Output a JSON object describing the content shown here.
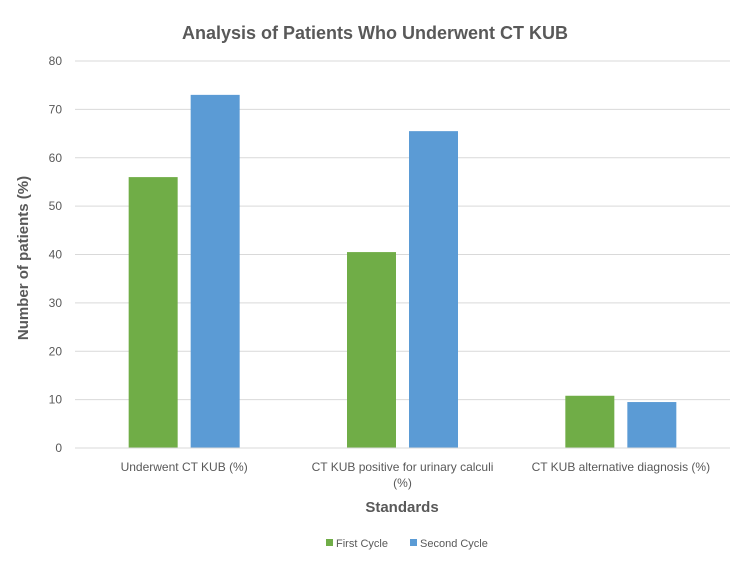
{
  "chart_data": {
    "type": "bar",
    "title": "Analysis of Patients Who Underwent CT KUB",
    "xlabel": "Standards",
    "ylabel": "Number of patients (%)",
    "ylim": [
      0,
      80
    ],
    "yticks": [
      0,
      10,
      20,
      30,
      40,
      50,
      60,
      70,
      80
    ],
    "grid": true,
    "legend_position": "bottom",
    "categories": [
      [
        "Underwent CT KUB (%)"
      ],
      [
        "CT KUB positive for urinary calculi",
        "(%)"
      ],
      [
        "CT KUB alternative diagnosis (%)"
      ]
    ],
    "series": [
      {
        "name": "First Cycle",
        "color": "#70ad47",
        "values": [
          56,
          40.5,
          10.8
        ]
      },
      {
        "name": "Second Cycle",
        "color": "#5b9bd5",
        "values": [
          73,
          65.5,
          9.5
        ]
      }
    ]
  }
}
